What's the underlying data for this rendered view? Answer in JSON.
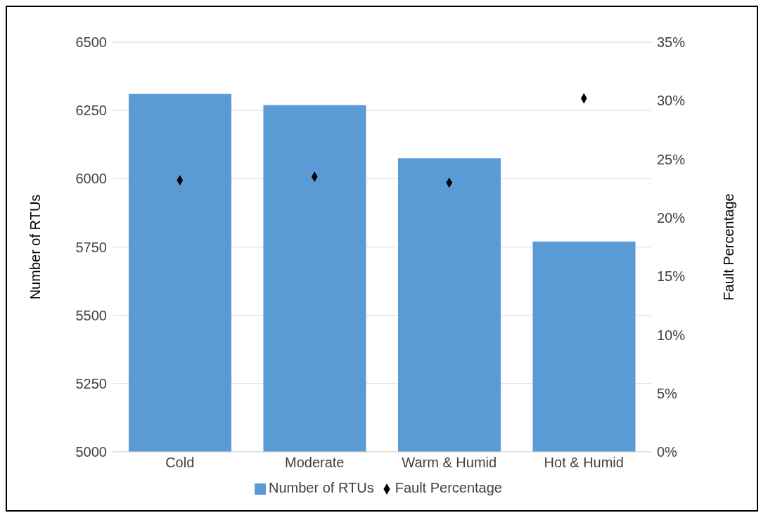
{
  "chart_data": {
    "type": "bar",
    "categories": [
      "Cold",
      "Moderate",
      "Warm & Humid",
      "Hot & Humid"
    ],
    "series": [
      {
        "name": "Number of RTUs",
        "color": "#5b9bd5",
        "values": [
          6310,
          6270,
          6075,
          5770
        ]
      },
      {
        "name": "Fault Percentage",
        "type": "scatter",
        "axis": "y2",
        "marker": "diamond",
        "color": "#000000",
        "values": [
          23.2,
          23.5,
          23.0,
          30.2
        ]
      }
    ],
    "ylabel": "Number of RTUs",
    "y2label": "Fault Percentage",
    "ylim": [
      5000,
      6500
    ],
    "yticks": [
      5000,
      5250,
      5500,
      5750,
      6000,
      6250,
      6500
    ],
    "y2lim": [
      0,
      35
    ],
    "y2ticks": [
      {
        "value": 0,
        "label": "0%"
      },
      {
        "value": 5,
        "label": "5%"
      },
      {
        "value": 10,
        "label": "10%"
      },
      {
        "value": 15,
        "label": "15%"
      },
      {
        "value": 20,
        "label": "20%"
      },
      {
        "value": 25,
        "label": "25%"
      },
      {
        "value": 30,
        "label": "30%"
      },
      {
        "value": 35,
        "label": "35%"
      }
    ],
    "grid": "y",
    "legend": "bottom"
  }
}
